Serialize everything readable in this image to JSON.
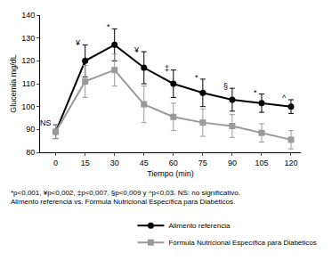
{
  "chart_data": {
    "type": "line",
    "x_label": "Tiempo (min)",
    "y_label": "Glucemia mg/dL",
    "x": [
      0,
      15,
      30,
      45,
      60,
      75,
      90,
      105,
      120
    ],
    "series": [
      {
        "name": "Alimento referencia",
        "color": "#000000",
        "marker": "circle",
        "values": [
          89,
          120,
          127,
          117,
          110,
          106,
          103,
          101.5,
          100
        ],
        "error": [
          3,
          7,
          7,
          7,
          6,
          6,
          5,
          4,
          3
        ]
      },
      {
        "name": "Fórmula Nutricional Específica para Diabéticos",
        "color": "#9a9a9a",
        "marker": "square",
        "values": [
          89,
          111,
          116,
          101,
          95.5,
          93,
          91.5,
          88.5,
          85.5
        ],
        "error": [
          3,
          7,
          7,
          8,
          6,
          6,
          5,
          4,
          4
        ]
      }
    ],
    "xlim": [
      -8,
      125
    ],
    "xticks": [
      0,
      15,
      30,
      45,
      60,
      75,
      90,
      105,
      120
    ],
    "ylim": [
      80,
      140
    ],
    "yticks": [
      80,
      90,
      100,
      110,
      120,
      130,
      140
    ],
    "grid": false,
    "legend": "bottom right",
    "annotations": [
      {
        "x": 0,
        "text": "NS"
      },
      {
        "x": 15,
        "text": "¥"
      },
      {
        "x": 30,
        "text": "*"
      },
      {
        "x": 45,
        "text": "¥"
      },
      {
        "x": 60,
        "text": "‡"
      },
      {
        "x": 75,
        "text": "*"
      },
      {
        "x": 90,
        "text": "§"
      },
      {
        "x": 105,
        "text": "*"
      },
      {
        "x": 120,
        "text": "^"
      }
    ],
    "note": [
      "*p<0,001, ¥p<0,002, ‡p<0,007, §p<0,009 y ^p<0,03. NS: no significativo.",
      "Alimento referencia vs. Fórmula Nutricional Específica para Diabéticos."
    ]
  }
}
